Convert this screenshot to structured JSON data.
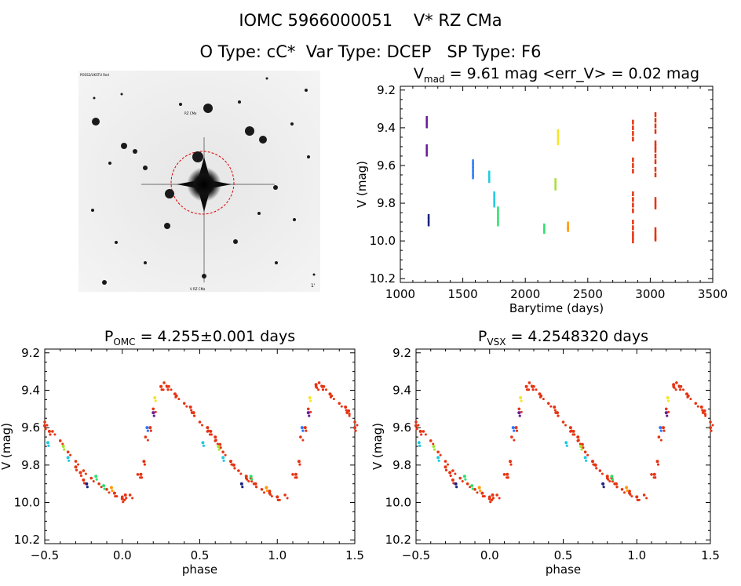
{
  "title_line1": "IOMC 5966000051    V* RZ CMa",
  "title_line2": "O Type: cC*  Var Type: DCEP   SP Type: F6",
  "finder": {
    "top_left_label": "POSS2/UKSTU Red",
    "red_label": "RZ CMa",
    "bottom_label": "V  RZ CMa",
    "scale_label": "1'"
  },
  "colors": {
    "background": "#ffffff",
    "axis": "#000000",
    "circle": "#e00000",
    "points": [
      "#6a1b9a",
      "#1a237e",
      "#2979ff",
      "#1ecbe1",
      "#30e070",
      "#a6e22e",
      "#f5e62a",
      "#ff9800",
      "#e63312"
    ]
  },
  "chart_data": [
    {
      "type": "scatter",
      "title_main": "V",
      "title_sub": "mad",
      "title_rest": " = 9.61 mag <err_V> = 0.02 mag",
      "xlabel": "Barytime (days)",
      "ylabel": "V (mag)",
      "xlim": [
        1000,
        3500
      ],
      "ylim": [
        10.22,
        9.18
      ],
      "xticks": [
        1000,
        1500,
        2000,
        2500,
        3000,
        3500
      ],
      "yticks": [
        9.2,
        9.4,
        9.6,
        9.8,
        10.0,
        10.2
      ],
      "ytick_labels": [
        "9.2",
        "9.4",
        "9.6",
        "9.8",
        "10.0",
        "10.2"
      ],
      "xtick_labels": [
        "1000",
        "1500",
        "2000",
        "2500",
        "3000",
        "3500"
      ],
      "series": [
        {
          "color": "#6a1b9a",
          "x": [
            1210,
            1210,
            1210,
            1210,
            1210,
            1210
          ],
          "y": [
            9.35,
            9.37,
            9.39,
            9.5,
            9.52,
            9.54
          ]
        },
        {
          "color": "#1a237e",
          "x": [
            1225,
            1225,
            1225
          ],
          "y": [
            9.87,
            9.89,
            9.91
          ]
        },
        {
          "color": "#2979ff",
          "x": [
            1580,
            1580,
            1580,
            1580,
            1580
          ],
          "y": [
            9.58,
            9.6,
            9.62,
            9.64,
            9.66
          ]
        },
        {
          "color": "#1ecbe1",
          "x": [
            1710,
            1710,
            1710,
            1750,
            1750,
            1750,
            1750
          ],
          "y": [
            9.64,
            9.66,
            9.68,
            9.75,
            9.77,
            9.79,
            9.81
          ]
        },
        {
          "color": "#30e070",
          "x": [
            1780,
            1780,
            1780,
            1780,
            1780,
            2150,
            2150,
            2150
          ],
          "y": [
            9.83,
            9.85,
            9.87,
            9.89,
            9.91,
            9.92,
            9.94,
            9.95
          ]
        },
        {
          "color": "#a6e22e",
          "x": [
            2240,
            2240,
            2240
          ],
          "y": [
            9.68,
            9.7,
            9.72
          ]
        },
        {
          "color": "#f5e62a",
          "x": [
            2260,
            2260,
            2260,
            2260
          ],
          "y": [
            9.42,
            9.44,
            9.46,
            9.48
          ]
        },
        {
          "color": "#ff9800",
          "x": [
            2340,
            2340,
            2340
          ],
          "y": [
            9.91,
            9.93,
            9.94
          ]
        },
        {
          "color": "#e63312",
          "x": [
            2860,
            2860,
            2860,
            2860,
            2860,
            2860,
            2860,
            2860,
            2860,
            2860,
            2860,
            2860,
            2860,
            2860,
            2860,
            2860,
            3040,
            3040,
            3040,
            3040,
            3040,
            3040,
            3040,
            3040,
            3040,
            3040,
            3040,
            3040,
            3040,
            3040,
            3040,
            3040,
            3040,
            3040
          ],
          "y": [
            9.37,
            9.4,
            9.43,
            9.46,
            9.57,
            9.6,
            9.63,
            9.75,
            9.78,
            9.81,
            9.84,
            9.9,
            9.93,
            9.96,
            9.98,
            10.0,
            9.33,
            9.36,
            9.39,
            9.42,
            9.48,
            9.5,
            9.52,
            9.55,
            9.58,
            9.62,
            9.65,
            9.78,
            9.8,
            9.82,
            9.94,
            9.96,
            9.98,
            9.99
          ]
        }
      ]
    },
    {
      "type": "scatter",
      "title_main": "P",
      "title_sub": "OMC",
      "title_rest": " = 4.255±0.001 days",
      "xlabel": "phase",
      "ylabel": "V (mag)",
      "xlim": [
        -0.5,
        1.5
      ],
      "ylim": [
        10.22,
        9.18
      ],
      "xticks": [
        -0.5,
        0.0,
        0.5,
        1.0,
        1.5
      ],
      "xtick_labels": [
        "−0.5",
        "0.0",
        "0.5",
        "1.0",
        "1.5"
      ],
      "yticks": [
        9.2,
        9.4,
        9.6,
        9.8,
        10.0,
        10.2
      ],
      "ytick_labels": [
        "9.2",
        "9.4",
        "9.6",
        "9.8",
        "10.0",
        "10.2"
      ],
      "curve": {
        "x": [
          0.0,
          0.05,
          0.1,
          0.15,
          0.2,
          0.25,
          0.27,
          0.3,
          0.35,
          0.4,
          0.45,
          0.5,
          0.55,
          0.6,
          0.65,
          0.7,
          0.75,
          0.8,
          0.85,
          0.9,
          0.95,
          1.0
        ],
        "y": [
          9.97,
          9.96,
          9.85,
          9.65,
          9.5,
          9.38,
          9.36,
          9.38,
          9.43,
          9.47,
          9.52,
          9.57,
          9.62,
          9.67,
          9.73,
          9.78,
          9.83,
          9.87,
          9.9,
          9.93,
          9.95,
          9.97
        ]
      },
      "series": [
        {
          "color": "#e63312",
          "x": [
            -0.5,
            -0.47,
            -0.3,
            -0.27,
            -0.25,
            -0.05,
            0.0,
            0.02,
            0.12,
            0.14,
            0.18,
            0.25,
            0.29,
            0.34,
            0.44,
            0.46,
            0.55,
            0.57,
            0.6,
            0.63,
            0.7,
            0.72,
            0.8,
            0.83,
            0.86,
            0.95,
            1.0,
            1.12,
            1.14,
            1.18,
            1.25,
            1.29,
            1.34,
            1.44,
            1.46,
            1.5
          ],
          "y": [
            9.59,
            9.62,
            9.81,
            9.84,
            9.88,
            9.95,
            9.98,
            9.96,
            9.85,
            9.78,
            9.6,
            9.38,
            9.38,
            9.42,
            9.49,
            9.52,
            9.6,
            9.62,
            9.65,
            9.69,
            9.78,
            9.8,
            9.86,
            9.87,
            9.9,
            9.94,
            9.97,
            9.85,
            9.78,
            9.6,
            9.37,
            9.38,
            9.42,
            9.49,
            9.51,
            9.6
          ]
        },
        {
          "color": "#1ecbe1",
          "x": [
            -0.48,
            -0.35,
            0.52,
            0.65,
            1.52
          ],
          "y": [
            9.68,
            9.76,
            9.68,
            9.76,
            9.68
          ]
        },
        {
          "color": "#30e070",
          "x": [
            -0.17,
            0.83,
            -0.12
          ],
          "y": [
            9.86,
            9.86,
            9.91
          ]
        },
        {
          "color": "#a6e22e",
          "x": [
            -0.38,
            0.62
          ],
          "y": [
            9.7,
            9.7
          ]
        },
        {
          "color": "#1a237e",
          "x": [
            -0.23,
            0.77
          ],
          "y": [
            9.9,
            9.9
          ]
        },
        {
          "color": "#2979ff",
          "x": [
            0.16,
            1.16
          ],
          "y": [
            9.6,
            9.6
          ]
        },
        {
          "color": "#6a1b9a",
          "x": [
            0.2,
            1.2
          ],
          "y": [
            9.52,
            9.52
          ]
        },
        {
          "color": "#f5e62a",
          "x": [
            0.21,
            1.21
          ],
          "y": [
            9.44,
            9.44
          ]
        },
        {
          "color": "#ff9800",
          "x": [
            -0.07,
            0.93
          ],
          "y": [
            9.92,
            9.92
          ]
        }
      ]
    },
    {
      "type": "scatter",
      "title_main": "P",
      "title_sub": "VSX",
      "title_rest": " = 4.2548320 days",
      "xlabel": "phase",
      "ylabel": "V (mag)",
      "xlim": [
        -0.5,
        1.5
      ],
      "ylim": [
        10.22,
        9.18
      ],
      "xticks": [
        -0.5,
        0.0,
        0.5,
        1.0,
        1.5
      ],
      "xtick_labels": [
        "−0.5",
        "0.0",
        "0.5",
        "1.0",
        "1.5"
      ],
      "yticks": [
        9.2,
        9.4,
        9.6,
        9.8,
        10.0,
        10.2
      ],
      "ytick_labels": [
        "9.2",
        "9.4",
        "9.6",
        "9.8",
        "10.0",
        "10.2"
      ],
      "curve": {
        "x": [
          0.0,
          0.05,
          0.1,
          0.15,
          0.2,
          0.25,
          0.27,
          0.3,
          0.35,
          0.4,
          0.45,
          0.5,
          0.55,
          0.6,
          0.65,
          0.7,
          0.75,
          0.8,
          0.85,
          0.9,
          0.95,
          1.0
        ],
        "y": [
          9.97,
          9.96,
          9.85,
          9.65,
          9.5,
          9.38,
          9.36,
          9.38,
          9.43,
          9.47,
          9.52,
          9.57,
          9.62,
          9.67,
          9.73,
          9.78,
          9.83,
          9.87,
          9.9,
          9.93,
          9.95,
          9.97
        ]
      },
      "series": [
        {
          "color": "#e63312",
          "x": [
            -0.5,
            -0.47,
            -0.3,
            -0.27,
            -0.25,
            -0.05,
            0.0,
            0.02,
            0.12,
            0.14,
            0.18,
            0.25,
            0.29,
            0.34,
            0.44,
            0.46,
            0.55,
            0.57,
            0.6,
            0.63,
            0.7,
            0.72,
            0.8,
            0.83,
            0.86,
            0.95,
            1.0,
            1.12,
            1.14,
            1.18,
            1.25,
            1.29,
            1.34,
            1.44,
            1.46,
            1.5
          ],
          "y": [
            9.59,
            9.62,
            9.81,
            9.84,
            9.88,
            9.95,
            9.98,
            9.96,
            9.85,
            9.78,
            9.6,
            9.38,
            9.38,
            9.42,
            9.49,
            9.52,
            9.6,
            9.62,
            9.65,
            9.69,
            9.78,
            9.8,
            9.86,
            9.87,
            9.9,
            9.94,
            9.97,
            9.85,
            9.78,
            9.6,
            9.37,
            9.38,
            9.42,
            9.49,
            9.51,
            9.6
          ]
        },
        {
          "color": "#1ecbe1",
          "x": [
            -0.48,
            -0.35,
            0.52,
            0.65,
            1.52
          ],
          "y": [
            9.68,
            9.76,
            9.68,
            9.76,
            9.68
          ]
        },
        {
          "color": "#30e070",
          "x": [
            -0.17,
            0.83,
            -0.12
          ],
          "y": [
            9.86,
            9.86,
            9.91
          ]
        },
        {
          "color": "#a6e22e",
          "x": [
            -0.38,
            0.62
          ],
          "y": [
            9.7,
            9.7
          ]
        },
        {
          "color": "#1a237e",
          "x": [
            -0.23,
            0.77
          ],
          "y": [
            9.9,
            9.9
          ]
        },
        {
          "color": "#2979ff",
          "x": [
            0.16,
            1.16
          ],
          "y": [
            9.6,
            9.6
          ]
        },
        {
          "color": "#6a1b9a",
          "x": [
            0.2,
            1.2
          ],
          "y": [
            9.52,
            9.52
          ]
        },
        {
          "color": "#f5e62a",
          "x": [
            0.21,
            1.21
          ],
          "y": [
            9.44,
            9.44
          ]
        },
        {
          "color": "#ff9800",
          "x": [
            -0.07,
            0.93
          ],
          "y": [
            9.92,
            9.92
          ]
        }
      ]
    }
  ]
}
